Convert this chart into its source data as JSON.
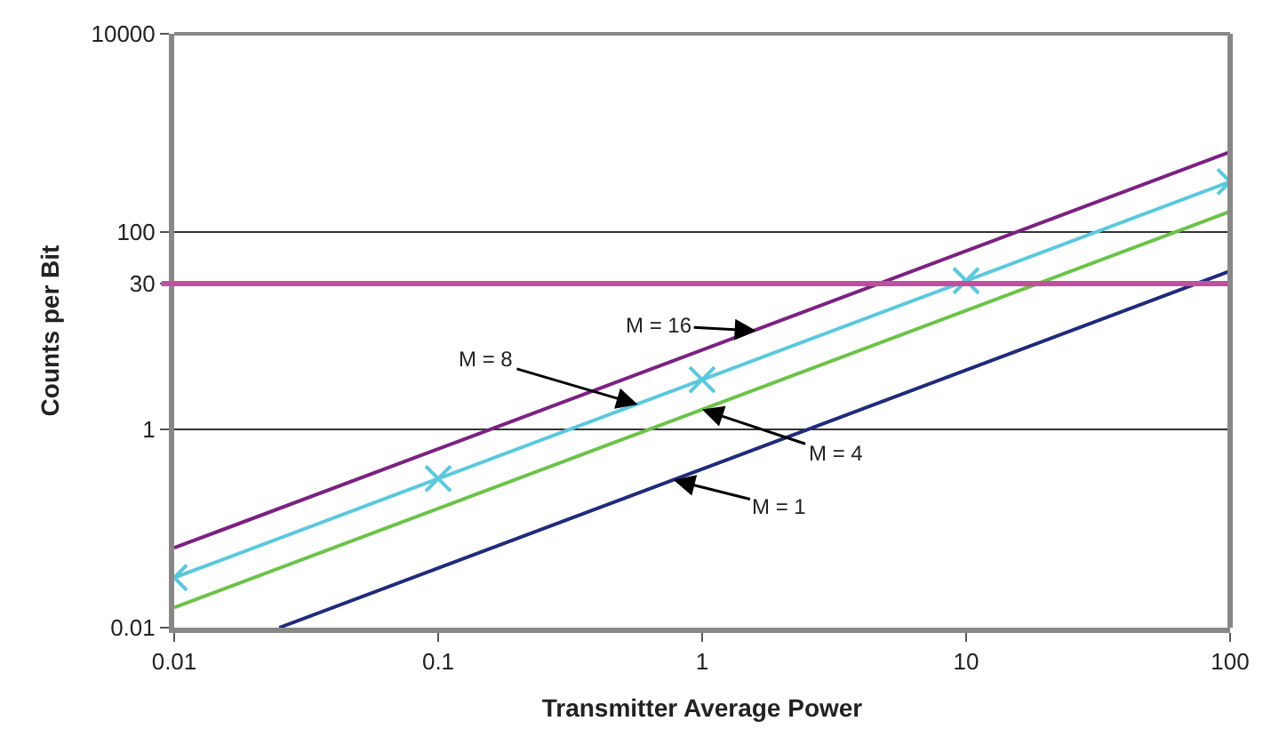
{
  "chart_data": {
    "type": "line",
    "xlabel": "Transmitter Average Power",
    "ylabel": "Counts per Bit",
    "log": "xy",
    "xlim": [
      0.01,
      100
    ],
    "xticks": [
      0.01,
      0.1,
      1,
      10,
      100
    ],
    "ylim": [
      0.01,
      10000
    ],
    "yticks": [
      0.01,
      1,
      30,
      100,
      10000
    ],
    "grid": "y",
    "series": [
      {
        "color": "#7b2181",
        "x": [
          0.01,
          100
        ],
        "values": [
          0.064,
          640
        ],
        "marker": "none"
      },
      {
        "color": "#5bc8dc",
        "x": [
          0.01,
          0.1,
          1,
          10,
          100
        ],
        "values": [
          0.032,
          0.32,
          3.2,
          32,
          320
        ],
        "marker": "cross"
      },
      {
        "color": "#6cc24a",
        "x": [
          0.01,
          100
        ],
        "values": [
          0.016,
          160
        ],
        "marker": "none"
      },
      {
        "color": "#1f2a7a",
        "x": [
          0.025,
          100
        ],
        "values": [
          0.01,
          40
        ],
        "marker": "none"
      }
    ],
    "ref_lines": [
      {
        "axis": "y",
        "value": 30,
        "label": null,
        "color": "#c0509e"
      }
    ],
    "annotations": [
      {
        "text": "M = 16",
        "x": 1.6,
        "y": 10
      },
      {
        "text": "M = 8",
        "x": 0.57,
        "y": 1.8
      },
      {
        "text": "M = 4",
        "x": 1.0,
        "y": 1.6
      },
      {
        "text": "M = 1",
        "x": 0.78,
        "y": 0.31
      }
    ]
  }
}
